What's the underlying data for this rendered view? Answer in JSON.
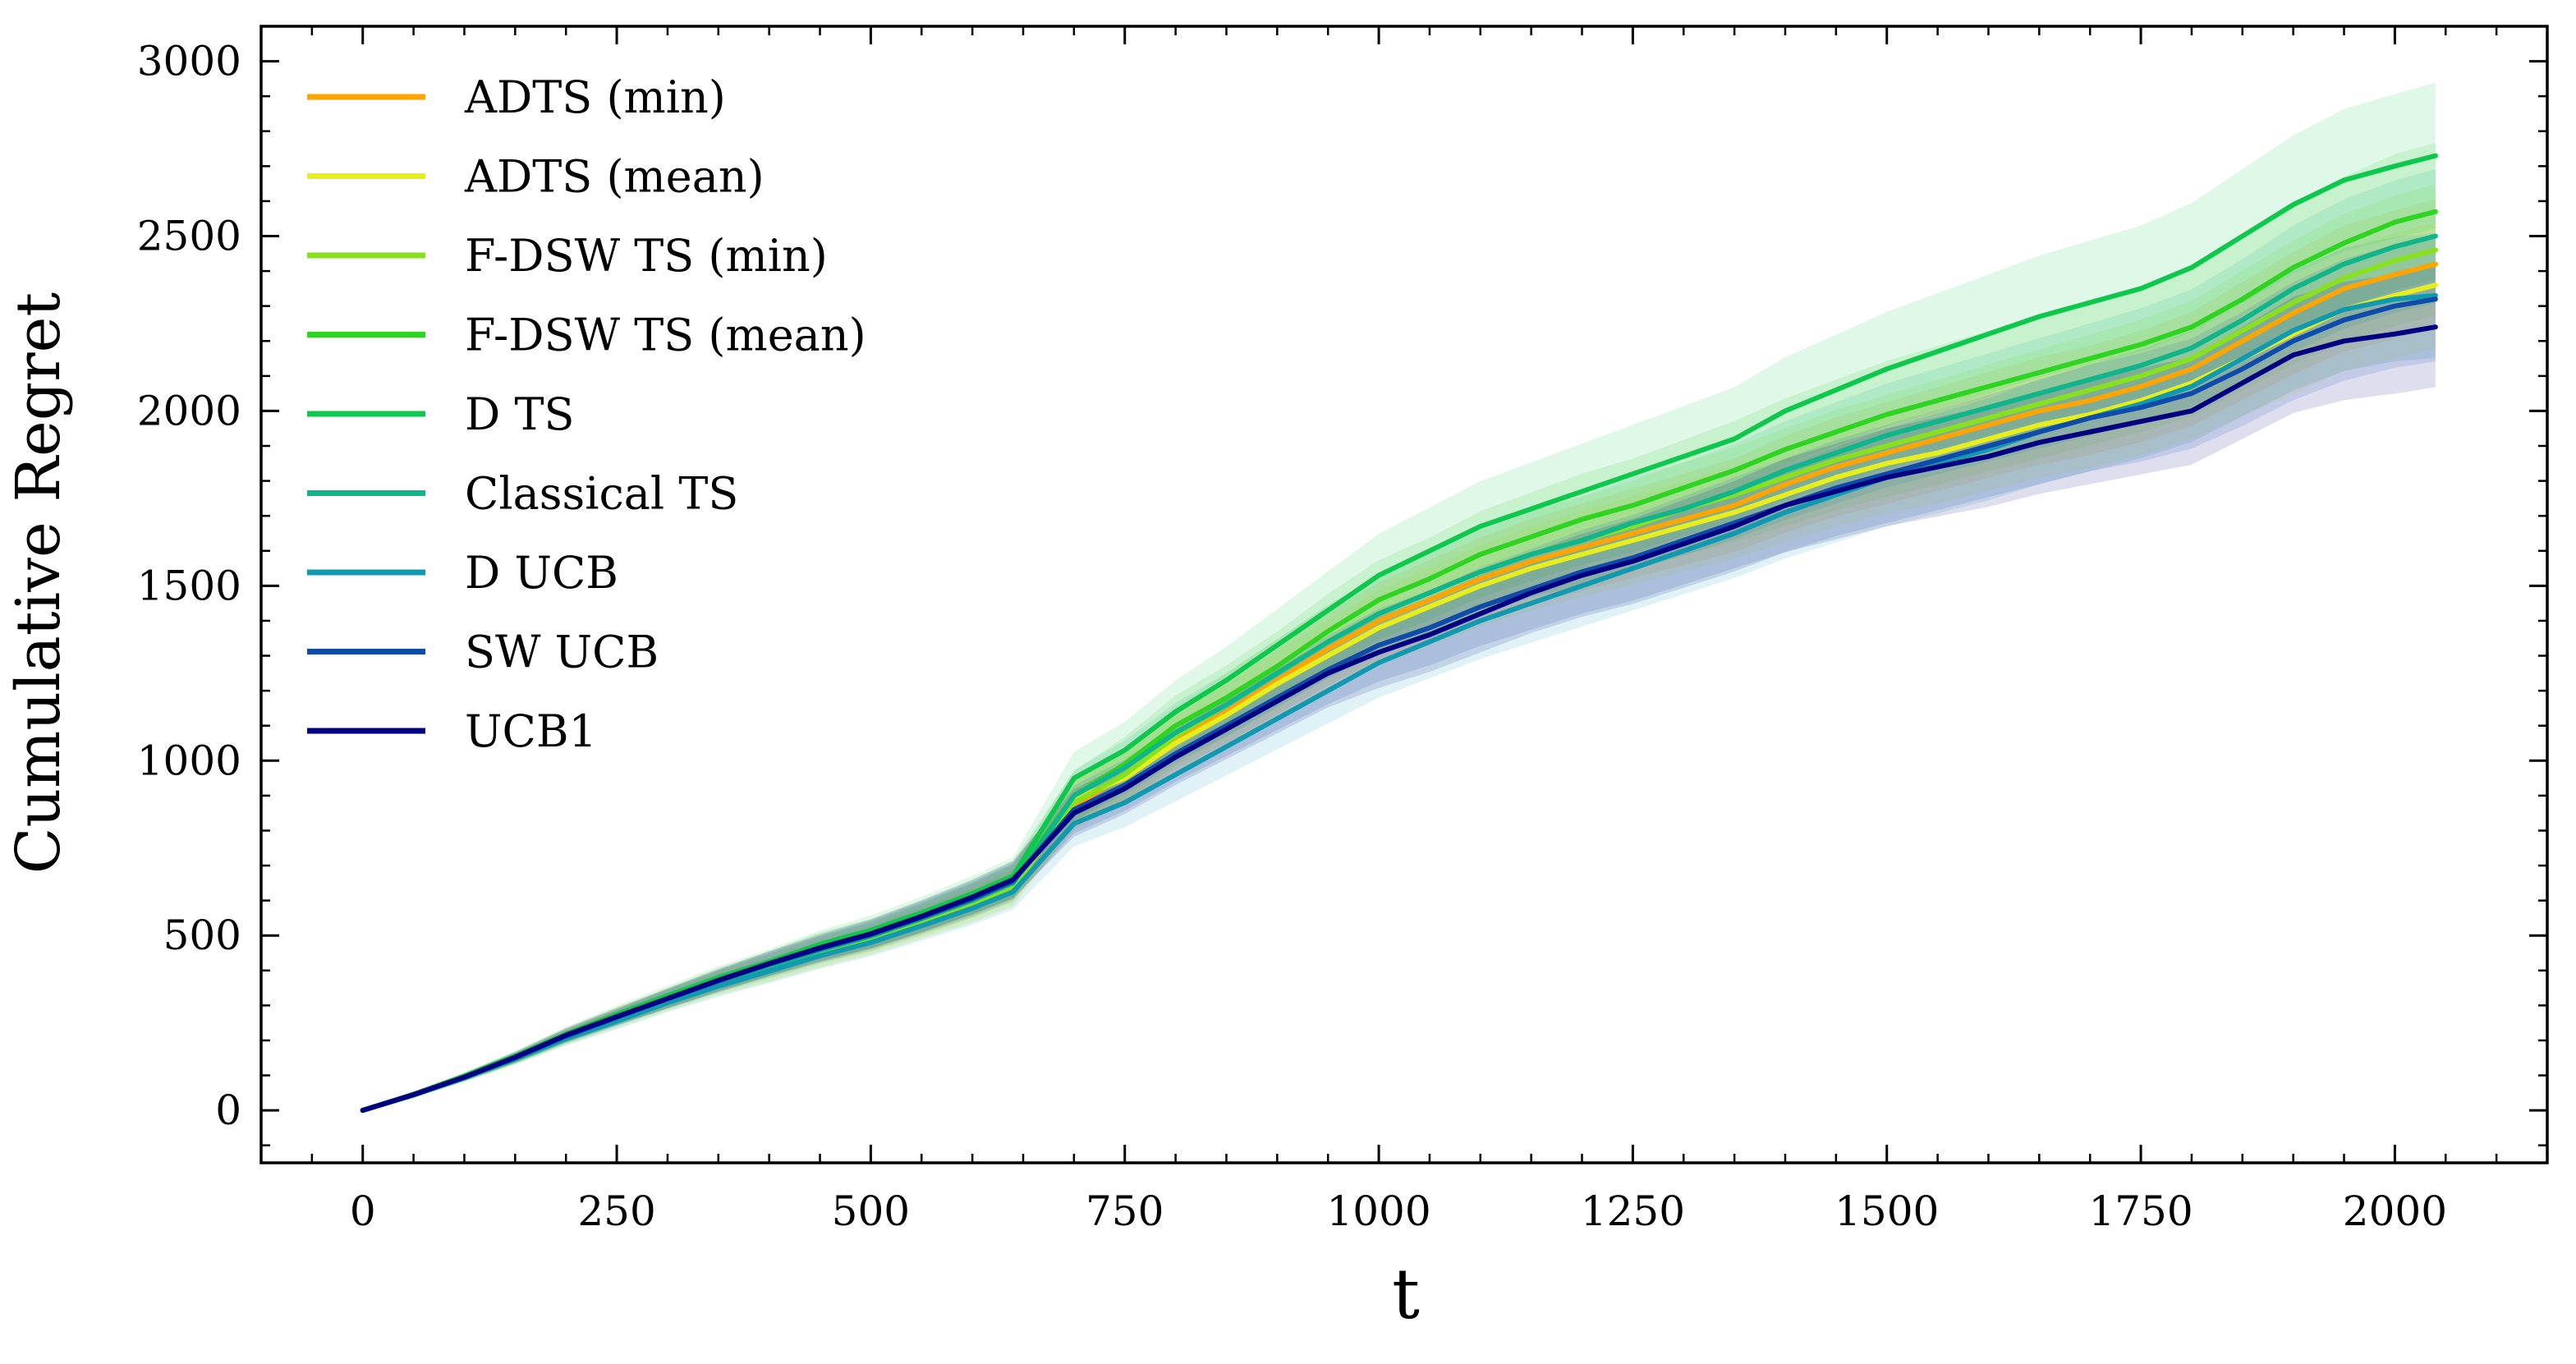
{
  "chart_data": {
    "type": "line",
    "title": "",
    "xlabel": "t",
    "ylabel": "Cumulative Regret",
    "xlim": [
      -100,
      2150
    ],
    "ylim": [
      -150,
      3100
    ],
    "xticks": [
      0,
      250,
      500,
      750,
      1000,
      1250,
      1500,
      1750,
      2000
    ],
    "yticks": [
      0,
      500,
      1000,
      1500,
      2000,
      2500,
      3000
    ],
    "x_tick_labels": [
      "0",
      "250",
      "500",
      "750",
      "1000",
      "1250",
      "1500",
      "1750",
      "2000"
    ],
    "y_tick_labels": [
      "0",
      "500",
      "1000",
      "1500",
      "2000",
      "2500",
      "3000"
    ],
    "grid": false,
    "legend_position": "top-left",
    "band": "shaded variability band around each series",
    "x": [
      0,
      50,
      100,
      150,
      200,
      250,
      300,
      350,
      400,
      450,
      500,
      550,
      600,
      640,
      700,
      750,
      800,
      850,
      900,
      950,
      1000,
      1050,
      1100,
      1150,
      1200,
      1250,
      1300,
      1350,
      1400,
      1450,
      1500,
      1550,
      1600,
      1650,
      1700,
      1750,
      1800,
      1850,
      1900,
      1950,
      2000,
      2040
    ],
    "series": [
      {
        "name": "ADTS (min)",
        "color": "#ffa500",
        "values": [
          0,
          45,
          95,
          150,
          215,
          270,
          320,
          370,
          415,
          460,
          495,
          545,
          600,
          650,
          870,
          960,
          1060,
          1140,
          1230,
          1320,
          1400,
          1460,
          1520,
          1570,
          1610,
          1650,
          1690,
          1730,
          1790,
          1840,
          1880,
          1920,
          1960,
          2000,
          2030,
          2070,
          2120,
          2200,
          2280,
          2350,
          2390,
          2420
        ]
      },
      {
        "name": "ADTS (mean)",
        "color": "#e6ee1e",
        "values": [
          0,
          45,
          95,
          150,
          210,
          265,
          315,
          365,
          405,
          450,
          490,
          540,
          590,
          640,
          890,
          950,
          1050,
          1130,
          1220,
          1300,
          1380,
          1440,
          1500,
          1550,
          1590,
          1630,
          1670,
          1710,
          1760,
          1810,
          1850,
          1880,
          1920,
          1960,
          1990,
          2030,
          2080,
          2150,
          2220,
          2290,
          2330,
          2360
        ]
      },
      {
        "name": "F-DSW TS (min)",
        "color": "#88e01e",
        "values": [
          0,
          43,
          92,
          145,
          205,
          258,
          310,
          360,
          400,
          445,
          485,
          535,
          585,
          635,
          880,
          960,
          1070,
          1160,
          1250,
          1340,
          1420,
          1480,
          1540,
          1590,
          1630,
          1670,
          1720,
          1760,
          1810,
          1860,
          1900,
          1940,
          1980,
          2020,
          2060,
          2100,
          2150,
          2230,
          2310,
          2380,
          2430,
          2460
        ]
      },
      {
        "name": "F-DSW TS (mean)",
        "color": "#2ed421",
        "values": [
          0,
          45,
          96,
          152,
          215,
          270,
          322,
          375,
          420,
          470,
          505,
          555,
          610,
          660,
          900,
          990,
          1100,
          1180,
          1270,
          1370,
          1460,
          1520,
          1590,
          1640,
          1690,
          1730,
          1780,
          1830,
          1890,
          1940,
          1990,
          2030,
          2070,
          2110,
          2150,
          2190,
          2240,
          2320,
          2410,
          2480,
          2540,
          2570
        ]
      },
      {
        "name": "D TS",
        "color": "#0dc84c",
        "values": [
          0,
          46,
          98,
          155,
          218,
          275,
          328,
          380,
          425,
          475,
          515,
          565,
          620,
          670,
          950,
          1030,
          1140,
          1230,
          1330,
          1430,
          1530,
          1600,
          1670,
          1720,
          1770,
          1820,
          1870,
          1920,
          2000,
          2060,
          2120,
          2170,
          2220,
          2270,
          2310,
          2350,
          2410,
          2500,
          2590,
          2660,
          2700,
          2730
        ]
      },
      {
        "name": "Classical TS",
        "color": "#10b58a",
        "values": [
          0,
          44,
          94,
          148,
          210,
          264,
          318,
          368,
          412,
          458,
          498,
          548,
          600,
          650,
          900,
          980,
          1080,
          1160,
          1250,
          1340,
          1420,
          1480,
          1540,
          1590,
          1630,
          1680,
          1720,
          1770,
          1830,
          1880,
          1930,
          1970,
          2010,
          2050,
          2090,
          2130,
          2180,
          2260,
          2350,
          2420,
          2470,
          2500
        ]
      },
      {
        "name": "D UCB",
        "color": "#1199b0",
        "values": [
          0,
          44,
          93,
          146,
          205,
          255,
          308,
          355,
          398,
          442,
          480,
          528,
          578,
          625,
          820,
          880,
          960,
          1040,
          1120,
          1200,
          1280,
          1340,
          1400,
          1450,
          1500,
          1550,
          1600,
          1650,
          1710,
          1760,
          1810,
          1850,
          1890,
          1940,
          1980,
          2020,
          2070,
          2150,
          2230,
          2290,
          2320,
          2330
        ]
      },
      {
        "name": "SW UCB",
        "color": "#0f4ba8",
        "values": [
          0,
          45,
          95,
          150,
          212,
          266,
          319,
          370,
          418,
          462,
          502,
          552,
          605,
          655,
          860,
          930,
          1020,
          1100,
          1180,
          1260,
          1330,
          1380,
          1440,
          1490,
          1540,
          1580,
          1630,
          1680,
          1730,
          1780,
          1820,
          1860,
          1900,
          1940,
          1980,
          2010,
          2050,
          2120,
          2200,
          2260,
          2300,
          2320
        ]
      },
      {
        "name": "UCB1",
        "color": "#000080",
        "values": [
          0,
          45,
          95,
          152,
          215,
          268,
          320,
          372,
          420,
          465,
          505,
          555,
          610,
          660,
          850,
          920,
          1010,
          1090,
          1170,
          1250,
          1310,
          1360,
          1420,
          1480,
          1530,
          1570,
          1620,
          1670,
          1730,
          1770,
          1810,
          1840,
          1870,
          1910,
          1940,
          1970,
          2000,
          2080,
          2160,
          2200,
          2220,
          2240
        ]
      }
    ]
  }
}
